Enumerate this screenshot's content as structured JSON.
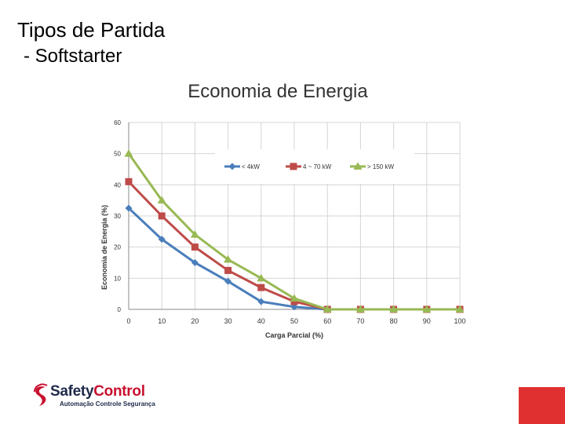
{
  "slide": {
    "title": "Tipos de Partida",
    "subtitle": " - Softstarter"
  },
  "chart_data": {
    "type": "line",
    "title": "Economia de Energia",
    "xlabel": "Carga Parcial (%)",
    "ylabel": "Economia de Energia (%)",
    "x": [
      0,
      10,
      20,
      30,
      40,
      50,
      60,
      70,
      80,
      90,
      100
    ],
    "xlim": [
      0,
      100
    ],
    "ylim": [
      0,
      60
    ],
    "yticks": [
      0,
      10,
      20,
      30,
      40,
      50,
      60
    ],
    "grid": true,
    "legend_position": "top-right",
    "series": [
      {
        "name": "< 4kW",
        "color": "#4a7ebb",
        "marker": "diamond",
        "values": [
          32.5,
          22.5,
          15,
          9,
          2.5,
          0.8,
          0,
          0,
          0,
          0,
          0
        ]
      },
      {
        "name": "4 ~ 70 kW",
        "color": "#be4b48",
        "marker": "square",
        "values": [
          41,
          30,
          20,
          12.5,
          7,
          2.5,
          0,
          0,
          0,
          0,
          0
        ]
      },
      {
        "name": "> 150 kW",
        "color": "#98b954",
        "marker": "triangle",
        "values": [
          50,
          35,
          24,
          16,
          10,
          3.5,
          0,
          0,
          0,
          0,
          0
        ]
      }
    ]
  },
  "logo": {
    "brand_part1": "Safety",
    "brand_part2": "Control",
    "tagline": "Automação Controle Segurança",
    "color_part1": "#1f2a4a",
    "color_part2": "#c8102e"
  },
  "colors": {
    "accent_red": "#e03030"
  }
}
